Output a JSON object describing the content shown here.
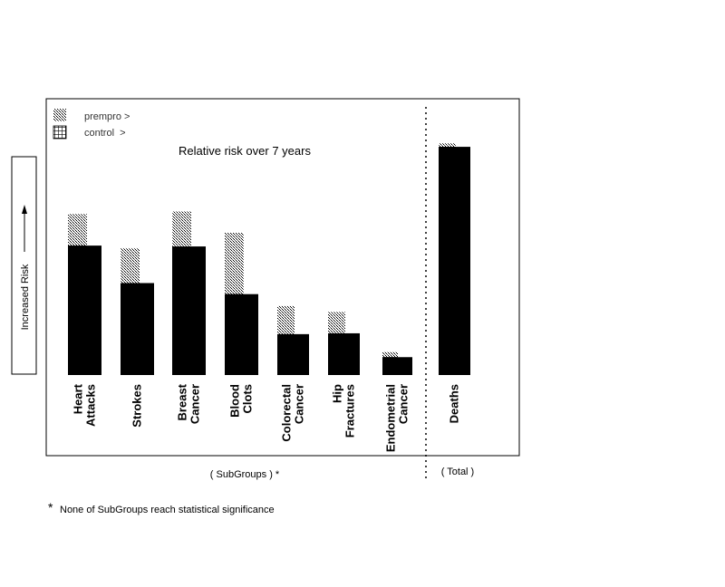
{
  "chart_data": {
    "type": "bar",
    "title": "Relative risk over 7 years",
    "ylabel": "Increased Risk",
    "legend": [
      {
        "label": "prempro >",
        "pattern": "diagonal-hatch"
      },
      {
        "label": "control  >",
        "pattern": "grid"
      }
    ],
    "legend_position": "top-left",
    "categories": [
      {
        "line1": "Heart",
        "line2": "Attacks"
      },
      {
        "line1": "",
        "line2": "Strokes"
      },
      {
        "line1": "Breast",
        "line2": "Cancer"
      },
      {
        "line1": "Blood",
        "line2": "Clots"
      },
      {
        "line1": "Colorectal",
        "line2": "Cancer"
      },
      {
        "line1": "Hip",
        "line2": "Fractures"
      },
      {
        "line1": "Endometrial",
        "line2": "Cancer"
      },
      {
        "line1": "",
        "line2": "Deaths"
      }
    ],
    "series": [
      {
        "name": "prempro >",
        "values": [
          189,
          149,
          192,
          167,
          81,
          74,
          27,
          272
        ]
      },
      {
        "name": "control  >",
        "values": [
          152,
          108,
          151,
          95,
          48,
          49,
          21,
          268
        ]
      }
    ],
    "ylim": [
      0,
      300
    ],
    "footnote_ref": "( SubGroups ) *",
    "total_label": "( Total )",
    "footnote": "None of SubGroups reach statistical significance",
    "footnote_mark": "*"
  },
  "colors": {
    "bar": "#000000",
    "frame": "#000000",
    "background": "#ffffff"
  }
}
